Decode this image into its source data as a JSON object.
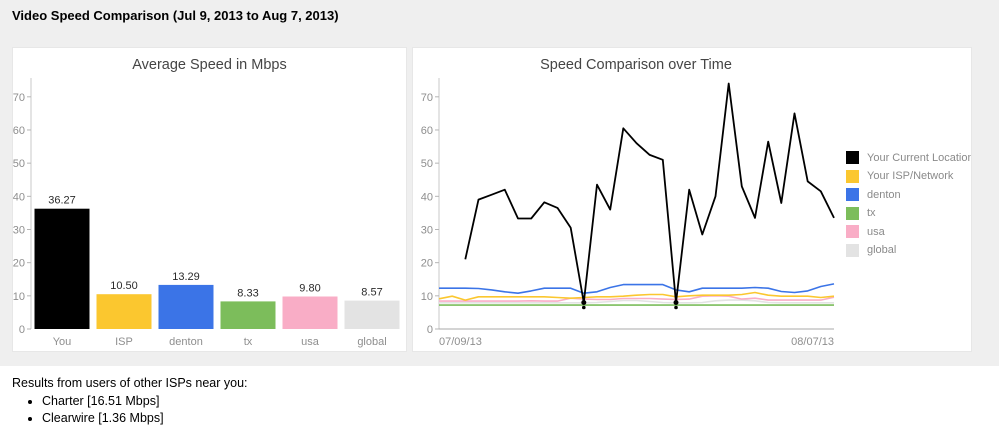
{
  "header": {
    "title": "Video Speed Comparison (Jul 9, 2013 to Aug 7, 2013)"
  },
  "colors": {
    "page_band": "#efefef",
    "panel_background": "#ffffff",
    "location_black": "#000000",
    "isp_yellow": "#FBC72F",
    "denton_blue": "#3B74E7",
    "tx_green": "#7CBD5B",
    "usa_pink": "#F9ADC6",
    "global_gray": "#E3E3E3",
    "axis_line": "#c9c9c9",
    "tick_text": "#8e8e8e"
  },
  "chart_data": [
    {
      "type": "bar",
      "title": "Average Speed in Mbps",
      "categories": [
        "You",
        "ISP",
        "denton",
        "tx",
        "usa",
        "global"
      ],
      "values": [
        36.27,
        10.5,
        13.29,
        8.33,
        9.8,
        8.57
      ],
      "value_labels": [
        "36.27",
        "10.50",
        "13.29",
        "8.33",
        "9.80",
        "8.57"
      ],
      "bar_colors": [
        "#000000",
        "#FBC72F",
        "#3B74E7",
        "#7CBD5B",
        "#F9ADC6",
        "#E3E3E3"
      ],
      "xlabel": "",
      "ylabel": "",
      "ylim": [
        0,
        70
      ],
      "yticks": [
        0,
        10,
        20,
        30,
        40,
        50,
        60,
        70
      ],
      "grid": false,
      "legend_position": "none"
    },
    {
      "type": "line",
      "title": "Speed Comparison over Time",
      "x_start_label": "07/09/13",
      "x_end_label": "08/07/13",
      "xlabel": "",
      "ylabel": "",
      "ylim": [
        0,
        70
      ],
      "yticks": [
        0,
        10,
        20,
        30,
        40,
        50,
        60,
        70
      ],
      "grid": false,
      "legend_position": "right",
      "series": [
        {
          "name": "Your Current Location",
          "color": "#000000",
          "marker_indices": [
            11,
            18
          ],
          "values": [
            null,
            null,
            21,
            39,
            40.5,
            42,
            33.3,
            33.3,
            38.2,
            36.5,
            30.5,
            8,
            43.5,
            36,
            60.5,
            56,
            52.5,
            51,
            8,
            42,
            28.5,
            40,
            74,
            43,
            33.5,
            56.5,
            38,
            65,
            44.5,
            41.5,
            33.5
          ]
        },
        {
          "name": "Your ISP/Network",
          "color": "#FBC72F",
          "values": [
            9.1,
            9.9,
            8.7,
            9.7,
            9.7,
            9.7,
            9.7,
            9.7,
            9.7,
            9.5,
            9.3,
            9.5,
            9.7,
            9.7,
            9.9,
            10.2,
            10.4,
            10.4,
            9.7,
            10.0,
            10.2,
            10.2,
            10.2,
            10.4,
            11.0,
            10.2,
            9.9,
            9.9,
            9.9,
            9.5,
            9.9
          ]
        },
        {
          "name": "denton",
          "color": "#3B74E7",
          "values": [
            12.3,
            12.3,
            12.3,
            12.2,
            11.8,
            11.2,
            10.8,
            11.5,
            12.3,
            12.3,
            12.3,
            10.8,
            11.2,
            12.5,
            13.4,
            13.4,
            13.4,
            13.4,
            11.8,
            11.2,
            12.3,
            12.3,
            12.3,
            12.3,
            12.5,
            12.3,
            11.3,
            11.0,
            11.5,
            12.8,
            13.6
          ]
        },
        {
          "name": "tx",
          "color": "#7CBD5B",
          "values": [
            7.2,
            7.2,
            7.2,
            7.2,
            7.2,
            7.2,
            7.2,
            7.2,
            7.2,
            7.2,
            7.2,
            7.2,
            7.2,
            7.2,
            7.2,
            7.2,
            7.2,
            7.2,
            7.2,
            7.2,
            7.2,
            7.2,
            7.2,
            7.2,
            7.2,
            7.2,
            7.2,
            7.2,
            7.2,
            7.2,
            7.2
          ]
        },
        {
          "name": "usa",
          "color": "#F9ADC6",
          "values": [
            8.4,
            8.4,
            8.4,
            8.4,
            8.4,
            8.4,
            8.4,
            8.5,
            8.4,
            8.4,
            9.3,
            9.0,
            8.9,
            8.9,
            9.2,
            9.2,
            9.2,
            9.0,
            8.9,
            9.0,
            9.9,
            10.0,
            9.9,
            9.0,
            9.3,
            8.7,
            8.7,
            8.7,
            8.7,
            8.7,
            9.6
          ]
        },
        {
          "name": "global",
          "color": "#E3E3E3",
          "values": [
            7.9,
            7.9,
            7.9,
            7.9,
            7.9,
            7.9,
            7.9,
            7.9,
            7.9,
            7.9,
            7.9,
            7.9,
            8.0,
            8.3,
            8.6,
            8.6,
            8.3,
            8.0,
            7.9,
            7.9,
            8.0,
            8.5,
            8.7,
            8.7,
            8.5,
            8.0,
            7.9,
            7.9,
            7.9,
            7.9,
            7.9
          ]
        }
      ]
    }
  ],
  "results": {
    "intro": "Results from users of other ISPs near you:",
    "items": [
      "Charter [16.51 Mbps]",
      "Clearwire [1.36 Mbps]"
    ]
  }
}
